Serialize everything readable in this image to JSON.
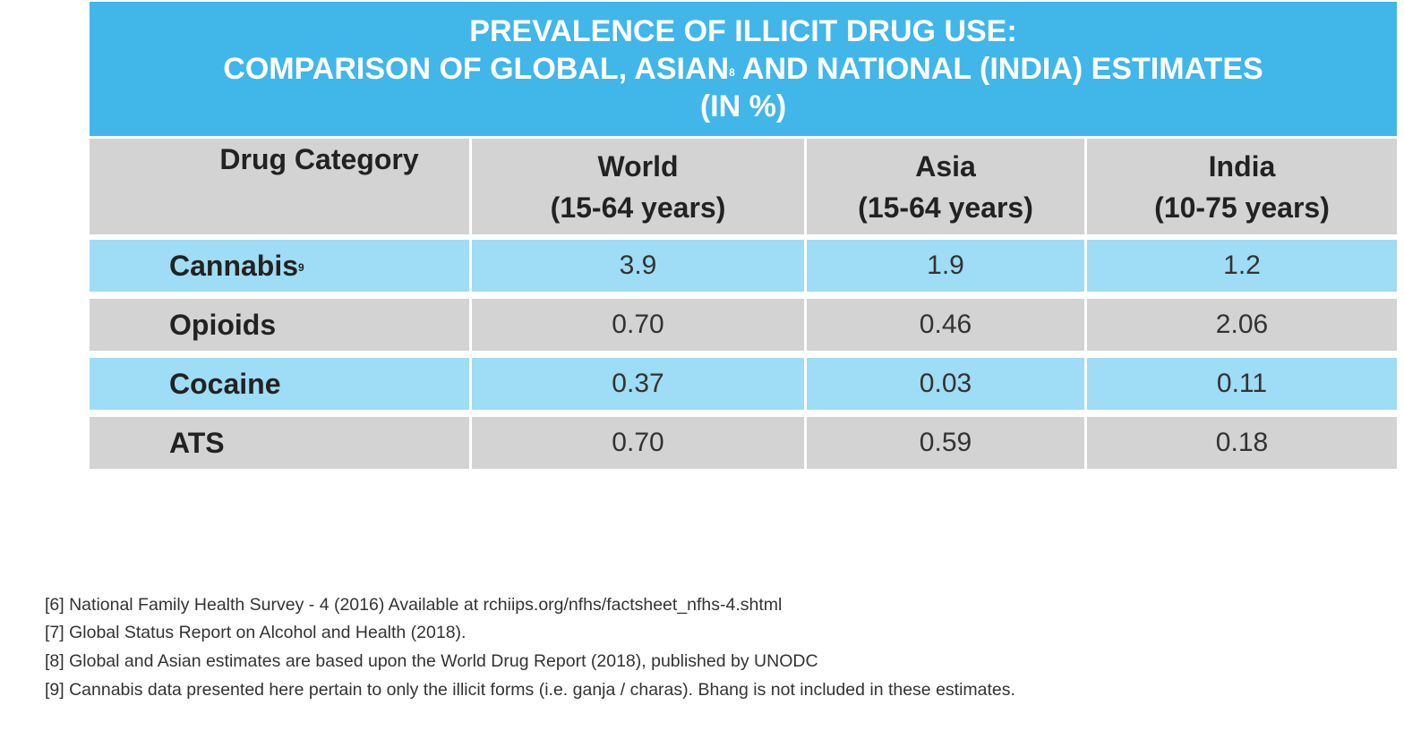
{
  "title": {
    "line1": "PREVALENCE OF ILLICIT DRUG USE:",
    "line2a": "COMPARISON OF GLOBAL, ASIAN",
    "line2sup": "8",
    "line2b": " AND NATIONAL (INDIA) ESTIMATES",
    "line3": "(IN %)"
  },
  "header": {
    "category": "Drug Category",
    "cols": [
      {
        "name": "World",
        "range": "(15-64 years)"
      },
      {
        "name": "Asia",
        "range": "(15-64 years)"
      },
      {
        "name": "India",
        "range": "(10-75 years)"
      }
    ]
  },
  "rows": [
    {
      "label": "Cannabis",
      "sup": "9",
      "values": [
        "3.9",
        "1.9",
        "1.2"
      ]
    },
    {
      "label": "Opioids",
      "sup": "",
      "values": [
        "0.70",
        "0.46",
        "2.06"
      ]
    },
    {
      "label": "Cocaine",
      "sup": "",
      "values": [
        "0.37",
        "0.03",
        "0.11"
      ]
    },
    {
      "label": "ATS",
      "sup": "",
      "values": [
        "0.70",
        "0.59",
        "0.18"
      ]
    }
  ],
  "footnotes": [
    "[6] National Family Health Survey - 4 (2016)  Available at rchiips.org/nfhs/factsheet_nfhs-4.shtml",
    "[7] Global Status Report on Alcohol and Health (2018).",
    "[8] Global and Asian estimates are based upon the World Drug Report (2018), published by UNODC",
    "[9] Cannabis data presented here pertain to only the illicit forms (i.e. ganja / charas). Bhang is not included in these estimates."
  ]
}
